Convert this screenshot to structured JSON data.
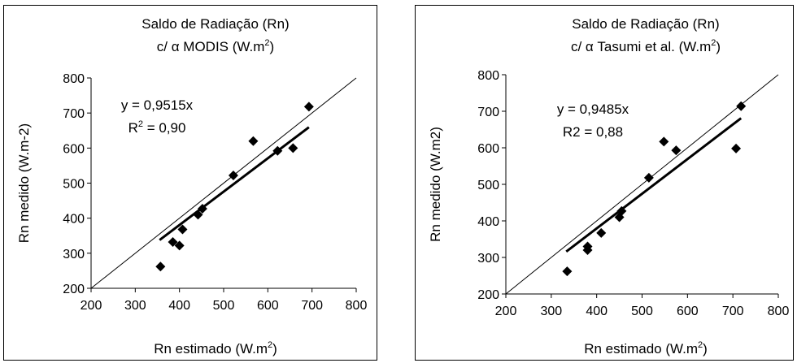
{
  "chart_data": [
    {
      "type": "scatter",
      "title_line1": "Saldo de Radiação (Rn)",
      "title_line2_prefix": "c/ α MODIS (W.m",
      "title_line2_sup": "2",
      "title_line2_suffix": ")",
      "xlabel_prefix": "Rn estimado (W.m",
      "xlabel_sup": "2",
      "xlabel_suffix": ")",
      "ylabel": "Rn medido (W.m-2)",
      "equation": "y = 0,9515x",
      "r2_prefix": "R",
      "r2_sup": "2",
      "r2_suffix": " = 0,90",
      "xlim": [
        200,
        800
      ],
      "ylim": [
        200,
        800
      ],
      "xticks": [
        "200",
        "300",
        "400",
        "500",
        "600",
        "700",
        "800"
      ],
      "yticks": [
        "200",
        "300",
        "400",
        "500",
        "600",
        "700",
        "800"
      ],
      "slope": 0.9515,
      "trend_x_range": [
        355,
        693
      ],
      "points": [
        {
          "x": 357,
          "y": 262
        },
        {
          "x": 385,
          "y": 332
        },
        {
          "x": 400,
          "y": 322
        },
        {
          "x": 407,
          "y": 368
        },
        {
          "x": 442,
          "y": 410
        },
        {
          "x": 452,
          "y": 427
        },
        {
          "x": 522,
          "y": 522
        },
        {
          "x": 567,
          "y": 620
        },
        {
          "x": 622,
          "y": 592
        },
        {
          "x": 657,
          "y": 600
        },
        {
          "x": 693,
          "y": 718
        }
      ]
    },
    {
      "type": "scatter",
      "title_line1": "Saldo de Radiação (Rn)",
      "title_line2_prefix": "c/ α Tasumi et al. (W.m",
      "title_line2_sup": "2",
      "title_line2_suffix": ")",
      "xlabel_prefix": "Rn estimado (W.m",
      "xlabel_sup": "2",
      "xlabel_suffix": ")",
      "ylabel": "Rn medido (W.m2)",
      "equation": "y = 0,9485x",
      "r2_prefix": "R2 = 0,88",
      "r2_sup": "",
      "r2_suffix": "",
      "xlim": [
        200,
        800
      ],
      "ylim": [
        200,
        800
      ],
      "xticks": [
        "200",
        "300",
        "400",
        "500",
        "600",
        "700",
        "800"
      ],
      "yticks": [
        "200",
        "300",
        "400",
        "500",
        "600",
        "700",
        "800"
      ],
      "slope": 0.9485,
      "trend_x_range": [
        333,
        718
      ],
      "points": [
        {
          "x": 335,
          "y": 262
        },
        {
          "x": 380,
          "y": 330
        },
        {
          "x": 380,
          "y": 320
        },
        {
          "x": 410,
          "y": 367
        },
        {
          "x": 450,
          "y": 410
        },
        {
          "x": 455,
          "y": 427
        },
        {
          "x": 515,
          "y": 518
        },
        {
          "x": 548,
          "y": 617
        },
        {
          "x": 575,
          "y": 593
        },
        {
          "x": 707,
          "y": 598
        },
        {
          "x": 718,
          "y": 714
        }
      ]
    }
  ]
}
